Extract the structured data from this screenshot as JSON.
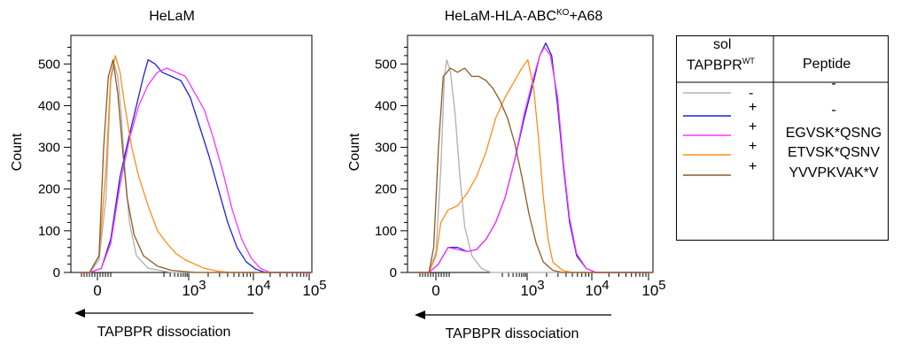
{
  "panels": [
    {
      "title": "HeLaM",
      "title_sup": "",
      "title_suffix": "",
      "ylabel": "Count",
      "xlabel": "TAPBPR dissociation",
      "yticks": [
        "0",
        "100",
        "200",
        "300",
        "400",
        "500"
      ],
      "xtick_labels": [
        {
          "base": "0",
          "exp": ""
        },
        {
          "base": "10",
          "exp": "3"
        },
        {
          "base": "10",
          "exp": "4"
        },
        {
          "base": "10",
          "exp": "5"
        }
      ]
    },
    {
      "title": "HeLaM-HLA-ABC",
      "title_sup": "KO",
      "title_suffix": "+A68",
      "ylabel": "Count",
      "xlabel": "TAPBPR dissociation",
      "yticks": [
        "0",
        "100",
        "200",
        "300",
        "400",
        "500"
      ],
      "xtick_labels": [
        {
          "base": "0",
          "exp": ""
        },
        {
          "base": "10",
          "exp": "3"
        },
        {
          "base": "10",
          "exp": "4"
        },
        {
          "base": "10",
          "exp": "5"
        }
      ]
    }
  ],
  "legend": {
    "col1_header_line1": "sol",
    "col1_header_line2": "TAPBPR",
    "col1_header_sup": "WT",
    "col2_header": "Peptide",
    "rows": [
      {
        "color": "#b0b0b0",
        "sol": "-",
        "peptide": "-"
      },
      {
        "color": "#2020e0",
        "sol": "+",
        "peptide": "-"
      },
      {
        "color": "#ff33ff",
        "sol": "+",
        "peptide": "EGVSK*QSNG"
      },
      {
        "color": "#ff8c1a",
        "sol": "+",
        "peptide": "ETVSK*QSNV"
      },
      {
        "color": "#8b5a2b",
        "sol": "+",
        "peptide": "YVVPKVAK*V"
      }
    ]
  },
  "chart_data": [
    {
      "type": "line",
      "title": "HeLaM",
      "xlabel": "TAPBPR dissociation",
      "ylabel": "Count",
      "x_scale": "biexponential (log above ~10^2)",
      "xlim": [
        -200,
        100000
      ],
      "ylim": [
        0,
        560
      ],
      "x_ticks": [
        "0",
        "10^3",
        "10^4",
        "10^5"
      ],
      "series": [
        {
          "name": "sol TAPBPR- / peptide -",
          "color": "#b0b0b0",
          "points": [
            [
              0.0,
              0
            ],
            [
              0.05,
              0
            ],
            [
              0.09,
              30
            ],
            [
              0.12,
              180
            ],
            [
              0.14,
              460
            ],
            [
              0.155,
              500
            ],
            [
              0.17,
              470
            ],
            [
              0.185,
              380
            ],
            [
              0.2,
              250
            ],
            [
              0.22,
              120
            ],
            [
              0.25,
              40
            ],
            [
              0.3,
              10
            ],
            [
              0.4,
              0
            ],
            [
              1,
              0
            ]
          ]
        },
        {
          "name": "sol TAPBPR+ / peptide -",
          "color": "#2020e0",
          "points": [
            [
              0.0,
              0
            ],
            [
              0.05,
              0
            ],
            [
              0.1,
              10
            ],
            [
              0.14,
              80
            ],
            [
              0.18,
              230
            ],
            [
              0.22,
              330
            ],
            [
              0.25,
              400
            ],
            [
              0.28,
              470
            ],
            [
              0.3,
              510
            ],
            [
              0.33,
              500
            ],
            [
              0.36,
              480
            ],
            [
              0.4,
              470
            ],
            [
              0.44,
              460
            ],
            [
              0.48,
              420
            ],
            [
              0.52,
              350
            ],
            [
              0.56,
              280
            ],
            [
              0.6,
              200
            ],
            [
              0.64,
              120
            ],
            [
              0.68,
              60
            ],
            [
              0.72,
              25
            ],
            [
              0.76,
              8
            ],
            [
              0.8,
              0
            ],
            [
              1,
              0
            ]
          ]
        },
        {
          "name": "sol TAPBPR+ / EGVSK*QSNG",
          "color": "#ff33ff",
          "points": [
            [
              0.0,
              0
            ],
            [
              0.05,
              0
            ],
            [
              0.1,
              10
            ],
            [
              0.14,
              70
            ],
            [
              0.18,
              210
            ],
            [
              0.22,
              320
            ],
            [
              0.26,
              400
            ],
            [
              0.3,
              450
            ],
            [
              0.34,
              480
            ],
            [
              0.38,
              490
            ],
            [
              0.42,
              480
            ],
            [
              0.46,
              470
            ],
            [
              0.5,
              430
            ],
            [
              0.54,
              390
            ],
            [
              0.58,
              320
            ],
            [
              0.62,
              240
            ],
            [
              0.66,
              150
            ],
            [
              0.7,
              80
            ],
            [
              0.74,
              35
            ],
            [
              0.78,
              10
            ],
            [
              0.82,
              0
            ],
            [
              1,
              0
            ]
          ]
        },
        {
          "name": "sol TAPBPR+ / ETVSK*QSNV",
          "color": "#ff8c1a",
          "points": [
            [
              0.0,
              0
            ],
            [
              0.05,
              0
            ],
            [
              0.09,
              40
            ],
            [
              0.12,
              250
            ],
            [
              0.14,
              470
            ],
            [
              0.16,
              520
            ],
            [
              0.18,
              480
            ],
            [
              0.2,
              400
            ],
            [
              0.23,
              300
            ],
            [
              0.26,
              230
            ],
            [
              0.3,
              160
            ],
            [
              0.34,
              100
            ],
            [
              0.38,
              70
            ],
            [
              0.42,
              45
            ],
            [
              0.46,
              30
            ],
            [
              0.5,
              20
            ],
            [
              0.54,
              10
            ],
            [
              0.6,
              3
            ],
            [
              0.65,
              0
            ],
            [
              1,
              0
            ]
          ]
        },
        {
          "name": "sol TAPBPR+ / YVVPKVAK*V",
          "color": "#8b5a2b",
          "points": [
            [
              0.0,
              0
            ],
            [
              0.05,
              0
            ],
            [
              0.09,
              40
            ],
            [
              0.11,
              300
            ],
            [
              0.13,
              470
            ],
            [
              0.15,
              510
            ],
            [
              0.17,
              430
            ],
            [
              0.19,
              300
            ],
            [
              0.21,
              180
            ],
            [
              0.24,
              90
            ],
            [
              0.28,
              40
            ],
            [
              0.34,
              15
            ],
            [
              0.4,
              5
            ],
            [
              0.5,
              0
            ],
            [
              1,
              0
            ]
          ]
        }
      ]
    },
    {
      "type": "line",
      "title": "HeLaM-HLA-ABCKO+A68",
      "xlabel": "TAPBPR dissociation",
      "ylabel": "Count",
      "x_scale": "biexponential (log above ~10^2)",
      "xlim": [
        -200,
        100000
      ],
      "ylim": [
        0,
        560
      ],
      "x_ticks": [
        "0",
        "10^3",
        "10^4",
        "10^5"
      ],
      "series": [
        {
          "name": "sol TAPBPR- / peptide -",
          "color": "#b0b0b0",
          "points": [
            [
              0.0,
              0
            ],
            [
              0.06,
              0
            ],
            [
              0.09,
              50
            ],
            [
              0.11,
              250
            ],
            [
              0.125,
              470
            ],
            [
              0.135,
              510
            ],
            [
              0.15,
              480
            ],
            [
              0.17,
              380
            ],
            [
              0.19,
              230
            ],
            [
              0.21,
              110
            ],
            [
              0.24,
              40
            ],
            [
              0.28,
              10
            ],
            [
              0.32,
              0
            ],
            [
              1,
              0
            ]
          ]
        },
        {
          "name": "sol TAPBPR+ / peptide -",
          "color": "#2020e0",
          "points": [
            [
              0.0,
              0
            ],
            [
              0.06,
              0
            ],
            [
              0.1,
              20
            ],
            [
              0.14,
              60
            ],
            [
              0.18,
              60
            ],
            [
              0.22,
              50
            ],
            [
              0.26,
              55
            ],
            [
              0.3,
              80
            ],
            [
              0.34,
              120
            ],
            [
              0.38,
              180
            ],
            [
              0.42,
              270
            ],
            [
              0.46,
              370
            ],
            [
              0.5,
              460
            ],
            [
              0.525,
              520
            ],
            [
              0.55,
              550
            ],
            [
              0.575,
              520
            ],
            [
              0.6,
              400
            ],
            [
              0.625,
              250
            ],
            [
              0.65,
              120
            ],
            [
              0.68,
              40
            ],
            [
              0.72,
              10
            ],
            [
              0.76,
              0
            ],
            [
              1,
              0
            ]
          ]
        },
        {
          "name": "sol TAPBPR+ / EGVSK*QSNG",
          "color": "#ff33ff",
          "points": [
            [
              0.0,
              0
            ],
            [
              0.06,
              0
            ],
            [
              0.1,
              20
            ],
            [
              0.14,
              60
            ],
            [
              0.18,
              55
            ],
            [
              0.22,
              50
            ],
            [
              0.26,
              55
            ],
            [
              0.3,
              80
            ],
            [
              0.34,
              120
            ],
            [
              0.38,
              180
            ],
            [
              0.42,
              270
            ],
            [
              0.46,
              380
            ],
            [
              0.5,
              470
            ],
            [
              0.525,
              520
            ],
            [
              0.545,
              540
            ],
            [
              0.57,
              520
            ],
            [
              0.6,
              420
            ],
            [
              0.625,
              260
            ],
            [
              0.65,
              130
            ],
            [
              0.68,
              45
            ],
            [
              0.72,
              10
            ],
            [
              0.76,
              0
            ],
            [
              1,
              0
            ]
          ]
        },
        {
          "name": "sol TAPBPR+ / ETVSK*QSNV",
          "color": "#ff8c1a",
          "points": [
            [
              0.0,
              0
            ],
            [
              0.06,
              0
            ],
            [
              0.09,
              40
            ],
            [
              0.11,
              120
            ],
            [
              0.14,
              150
            ],
            [
              0.18,
              160
            ],
            [
              0.22,
              190
            ],
            [
              0.26,
              230
            ],
            [
              0.3,
              290
            ],
            [
              0.34,
              370
            ],
            [
              0.38,
              420
            ],
            [
              0.42,
              460
            ],
            [
              0.45,
              490
            ],
            [
              0.475,
              510
            ],
            [
              0.5,
              440
            ],
            [
              0.52,
              320
            ],
            [
              0.54,
              180
            ],
            [
              0.56,
              80
            ],
            [
              0.58,
              25
            ],
            [
              0.62,
              5
            ],
            [
              0.66,
              0
            ],
            [
              1,
              0
            ]
          ]
        },
        {
          "name": "sol TAPBPR+ / YVVPKVAK*V",
          "color": "#8b5a2b",
          "points": [
            [
              0.0,
              0
            ],
            [
              0.06,
              0
            ],
            [
              0.08,
              60
            ],
            [
              0.1,
              300
            ],
            [
              0.12,
              470
            ],
            [
              0.15,
              490
            ],
            [
              0.18,
              480
            ],
            [
              0.21,
              490
            ],
            [
              0.24,
              470
            ],
            [
              0.27,
              470
            ],
            [
              0.3,
              460
            ],
            [
              0.33,
              440
            ],
            [
              0.36,
              410
            ],
            [
              0.39,
              370
            ],
            [
              0.42,
              310
            ],
            [
              0.45,
              230
            ],
            [
              0.48,
              140
            ],
            [
              0.51,
              70
            ],
            [
              0.54,
              25
            ],
            [
              0.58,
              5
            ],
            [
              0.62,
              0
            ],
            [
              1,
              0
            ]
          ]
        }
      ]
    }
  ]
}
